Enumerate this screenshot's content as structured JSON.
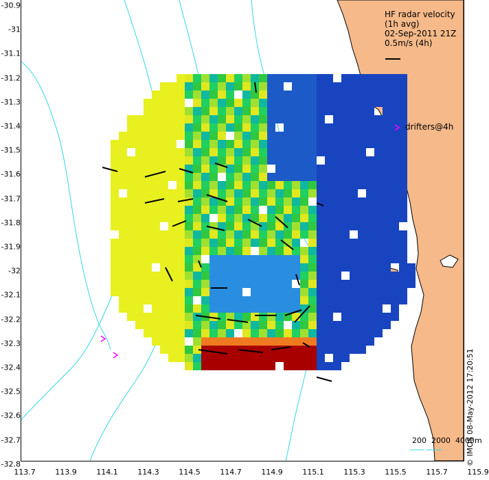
{
  "legend": {
    "line1": "HF radar velocity",
    "line2": "(1h avg)",
    "line3": "02-Sep-2011 21Z",
    "line4": "0.5m/s (4h)",
    "drifters": "drifters@4h"
  },
  "depth_legend": {
    "labels": [
      "200",
      "2000",
      "4000m"
    ]
  },
  "copyright": "© IMOS 08-May-2012 17:20:51",
  "axes": {
    "lon_ticks": [
      "113.7",
      "113.9",
      "114.1",
      "114.3",
      "114.5",
      "114.7",
      "114.9",
      "115.1",
      "115.3",
      "115.5",
      "115.7",
      "115.9"
    ],
    "lat_ticks": [
      "-30.9",
      "-31",
      "-31.1",
      "-31.2",
      "-31.3",
      "-31.4",
      "-31.5",
      "-31.6",
      "-31.7",
      "-31.8",
      "-31.9",
      "-32",
      "-32.1",
      "-32.2",
      "-32.3",
      "-32.4",
      "-32.5",
      "-32.6",
      "-32.7",
      "-32.8"
    ],
    "lon_range": [
      113.7,
      115.9
    ],
    "lat_range": [
      -32.8,
      -30.9
    ]
  },
  "colors": {
    "land": "#f5b98a",
    "bathymetry": "#33d6e6",
    "arrow": "#000000",
    "drifter": "#ff00ff"
  }
}
